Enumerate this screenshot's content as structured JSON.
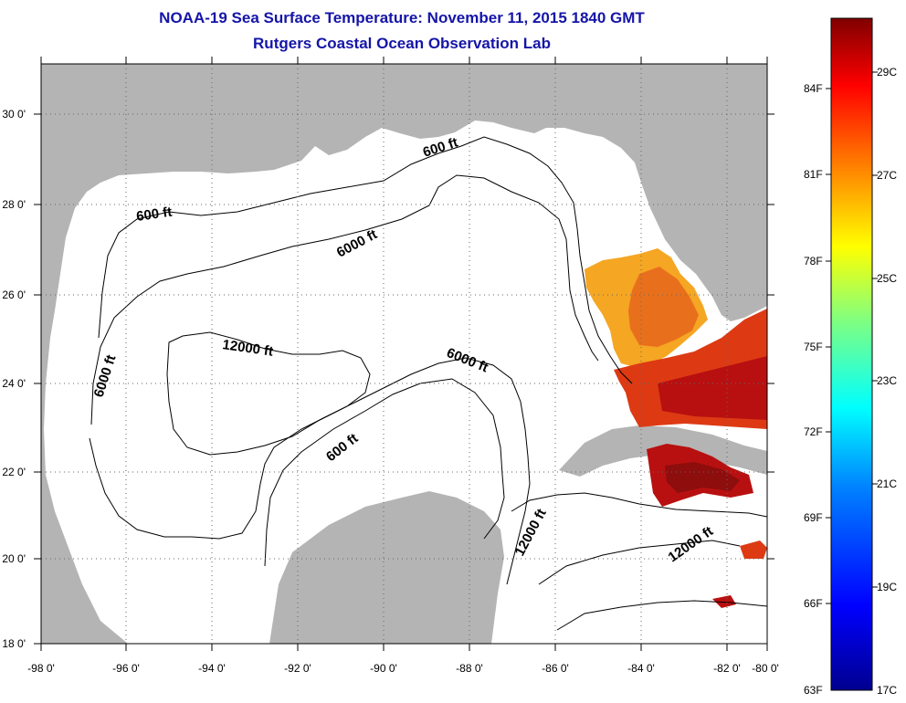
{
  "title": "NOAA-19 Sea Surface Temperature:  November 11, 2015 1840 GMT",
  "subtitle": "Rutgers Coastal Ocean Observation Lab",
  "map": {
    "lon_labels": [
      "-98 0'",
      "-96 0'",
      "-94 0'",
      "-92 0'",
      "-90 0'",
      "-88 0'",
      "-86 0'",
      "-84 0'",
      "-82 0'",
      "-80 0'"
    ],
    "lat_labels": [
      "30 0'",
      "28 0'",
      "26 0'",
      "24 0'",
      "22 0'",
      "20 0'",
      "18 0'"
    ],
    "land_color": "#b4b4b4",
    "ocean_color": "#ffffff",
    "contour_labels": [
      "600 ft",
      "600 ft",
      "600 ft",
      "6000 ft",
      "6000 ft",
      "6000 ft",
      "12000 ft",
      "12000 ft",
      "12000 ft"
    ],
    "sst_colors": [
      "#f5a623",
      "#e8701c",
      "#dd3a14",
      "#b81010",
      "#8e0d0d"
    ]
  },
  "colorbar": {
    "fahrenheit_labels": [
      "84F",
      "81F",
      "78F",
      "75F",
      "72F",
      "69F",
      "66F",
      "63F"
    ],
    "celsius_labels": [
      "29C",
      "27C",
      "25C",
      "23C",
      "21C",
      "19C",
      "17C"
    ],
    "colors": [
      "#00008f",
      "#0000ff",
      "#0080ff",
      "#00ffff",
      "#80ff80",
      "#ffff00",
      "#ff8000",
      "#ff0000",
      "#800000"
    ]
  }
}
